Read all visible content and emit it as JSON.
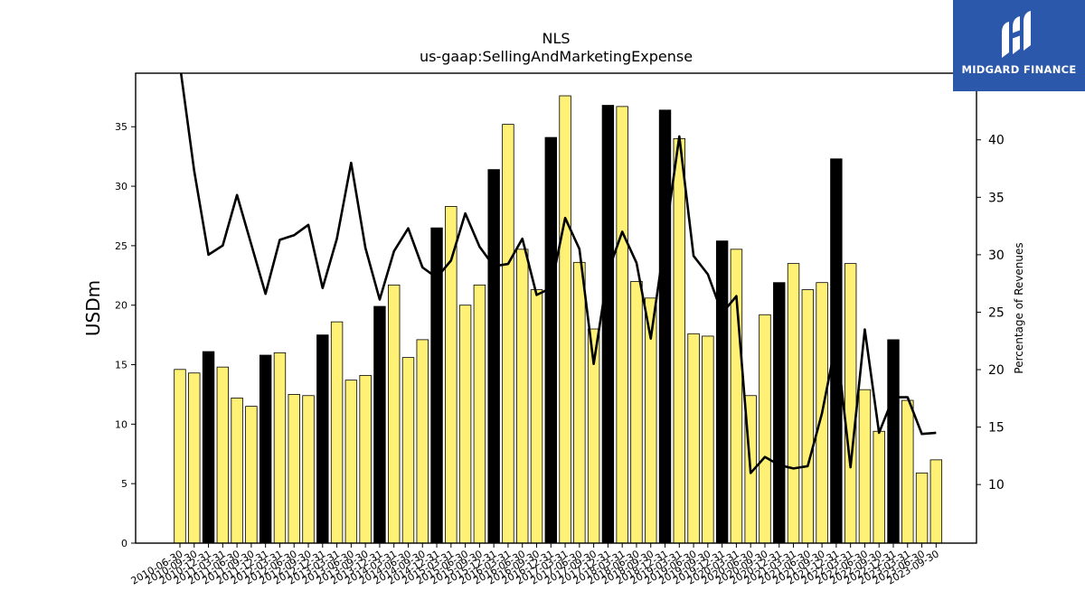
{
  "brand": {
    "name": "MIDGARD FINANCE",
    "color": "#2b58ab"
  },
  "chart_data": {
    "type": "bar",
    "title": "NLS",
    "subtitle": "us-gaap:SellingAndMarketingExpense",
    "ylabel": "USDm",
    "y2label": "Percentage of Revenues",
    "ylim": [
      0,
      39.5
    ],
    "y2lim": [
      4.9,
      45.8
    ],
    "yticks": [
      "0",
      "5",
      "10",
      "15",
      "20",
      "25",
      "30",
      "35"
    ],
    "y2ticks": [
      "10",
      "15",
      "20",
      "25",
      "30",
      "35",
      "40",
      "45"
    ],
    "bar_colors": {
      "quarter": "#fff176",
      "annual": "#000000"
    },
    "line_color": "#000000",
    "categories": [
      "2010-06-30",
      "2010-09-30",
      "2010-12-31",
      "2011-03-31",
      "2011-06-30",
      "2011-09-30",
      "2011-12-31",
      "2012-03-31",
      "2012-06-30",
      "2012-09-30",
      "2012-12-31",
      "2013-03-31",
      "2013-06-30",
      "2013-09-30",
      "2013-12-31",
      "2014-03-31",
      "2014-06-30",
      "2014-09-30",
      "2014-12-31",
      "2015-03-31",
      "2015-06-30",
      "2015-09-30",
      "2015-12-31",
      "2016-03-31",
      "2016-06-30",
      "2016-09-30",
      "2016-12-31",
      "2017-03-31",
      "2017-06-30",
      "2017-09-30",
      "2017-12-31",
      "2018-03-31",
      "2018-06-30",
      "2018-09-30",
      "2018-12-31",
      "2019-03-31",
      "2019-06-30",
      "2019-09-30",
      "2019-12-31",
      "2020-03-31",
      "2020-06-30",
      "2020-09-30",
      "2020-12-31",
      "2021-03-31",
      "2021-06-30",
      "2021-09-30",
      "2021-12-31",
      "2022-03-31",
      "2022-06-30",
      "2022-09-30",
      "2022-12-31",
      "2023-03-31",
      "2023-06-30",
      "2023-09-30"
    ],
    "series": [
      {
        "values": [
          14.6,
          14.3,
          16.1,
          14.8,
          12.2,
          11.5,
          15.8,
          16.0,
          12.5,
          12.4,
          17.5,
          18.6,
          13.7,
          14.1,
          19.9,
          21.7,
          15.6,
          17.1,
          26.5,
          28.3,
          20.0,
          21.7,
          31.4,
          35.2,
          24.7,
          21.3,
          34.1,
          37.6,
          23.6,
          18.0,
          36.8,
          36.7,
          22.0,
          20.6,
          36.4,
          34.0,
          17.6,
          17.4,
          25.4,
          24.7,
          12.4,
          19.2,
          21.9,
          23.5,
          21.3,
          21.9,
          32.3,
          23.5,
          12.9,
          9.4,
          17.1,
          12.0,
          5.9,
          7.0
        ],
        "annual": [
          false,
          false,
          true,
          false,
          false,
          false,
          true,
          false,
          false,
          false,
          true,
          false,
          false,
          false,
          true,
          false,
          false,
          false,
          true,
          false,
          false,
          false,
          true,
          false,
          false,
          false,
          true,
          false,
          false,
          false,
          true,
          false,
          false,
          false,
          true,
          false,
          false,
          false,
          true,
          false,
          false,
          false,
          true,
          false,
          false,
          false,
          true,
          false,
          false,
          false,
          true,
          false,
          false,
          false
        ]
      },
      {
        "values": [
          46.5,
          37.3,
          30.0,
          30.8,
          35.2,
          30.9,
          26.6,
          31.3,
          31.7,
          32.6,
          27.1,
          31.4,
          38.0,
          30.6,
          26.1,
          30.3,
          32.3,
          28.9,
          28.0,
          29.5,
          33.6,
          30.7,
          29.0,
          29.2,
          31.4,
          26.5,
          27.1,
          33.2,
          30.5,
          20.5,
          28.5,
          32.0,
          29.3,
          22.7,
          31.4,
          40.3,
          29.9,
          28.3,
          24.9,
          26.4,
          11.0,
          12.4,
          11.7,
          11.4,
          11.6,
          16.2,
          22.5,
          11.5,
          23.5,
          14.5,
          17.6,
          17.6,
          14.4,
          14.5
        ]
      }
    ]
  }
}
